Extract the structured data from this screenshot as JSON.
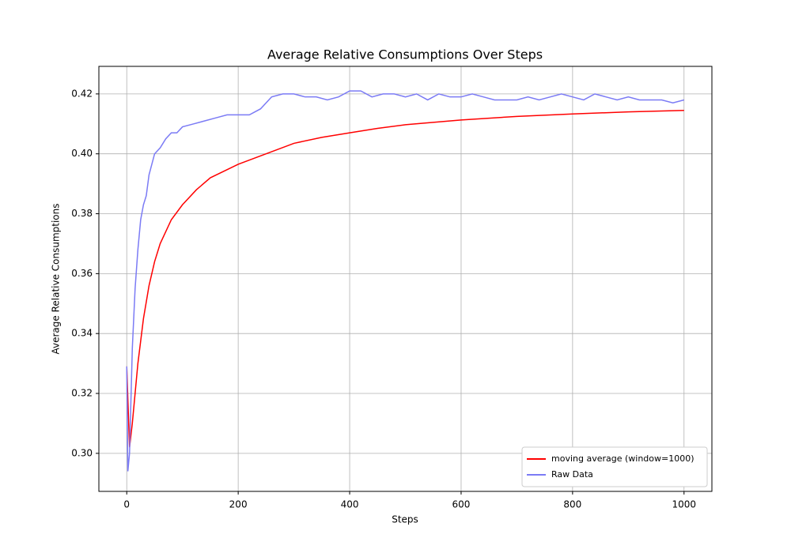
{
  "chart_data": {
    "type": "line",
    "title": "Average Relative Consumptions Over Steps",
    "x_label": "Steps",
    "y_label": "Average Relative Consumptions",
    "xlim": [
      -50,
      1050
    ],
    "ylim": [
      0.2873,
      0.4292
    ],
    "xticks": [
      0,
      200,
      400,
      600,
      800,
      1000
    ],
    "yticks": [
      {
        "value": 0.3,
        "label": "0.30"
      },
      {
        "value": 0.32,
        "label": "0.32"
      },
      {
        "value": 0.34,
        "label": "0.34"
      },
      {
        "value": 0.36,
        "label": "0.36"
      },
      {
        "value": 0.38,
        "label": "0.38"
      },
      {
        "value": 0.4,
        "label": "0.40"
      },
      {
        "value": 0.42,
        "label": "0.42"
      }
    ],
    "grid": true,
    "legend": "lower right",
    "series": [
      {
        "name": "moving average (window=1000)",
        "color": "#ff0000",
        "x": [
          0,
          5,
          10,
          20,
          30,
          40,
          50,
          60,
          80,
          100,
          125,
          150,
          200,
          250,
          300,
          350,
          400,
          450,
          500,
          600,
          700,
          800,
          900,
          1000
        ],
        "values": [
          0.329,
          0.302,
          0.31,
          0.33,
          0.345,
          0.356,
          0.364,
          0.37,
          0.378,
          0.383,
          0.388,
          0.392,
          0.3965,
          0.4,
          0.4035,
          0.4055,
          0.407,
          0.4085,
          0.4097,
          0.4113,
          0.4125,
          0.4133,
          0.414,
          0.4145
        ]
      },
      {
        "name": "Raw Data",
        "color": "#7b7bf5",
        "x": [
          0,
          2,
          5,
          10,
          15,
          20,
          25,
          30,
          35,
          40,
          50,
          60,
          70,
          80,
          90,
          100,
          120,
          140,
          160,
          180,
          200,
          220,
          240,
          260,
          280,
          300,
          320,
          340,
          360,
          380,
          400,
          420,
          440,
          460,
          480,
          500,
          520,
          540,
          560,
          580,
          600,
          620,
          640,
          660,
          680,
          700,
          720,
          740,
          760,
          780,
          800,
          820,
          840,
          860,
          880,
          900,
          920,
          940,
          960,
          980,
          1000
        ],
        "values": [
          0.329,
          0.294,
          0.3,
          0.335,
          0.355,
          0.368,
          0.378,
          0.383,
          0.386,
          0.393,
          0.4,
          0.402,
          0.405,
          0.407,
          0.407,
          0.409,
          0.41,
          0.411,
          0.412,
          0.413,
          0.413,
          0.413,
          0.415,
          0.419,
          0.42,
          0.42,
          0.419,
          0.419,
          0.418,
          0.419,
          0.421,
          0.421,
          0.419,
          0.42,
          0.42,
          0.419,
          0.42,
          0.418,
          0.42,
          0.419,
          0.419,
          0.42,
          0.419,
          0.418,
          0.418,
          0.418,
          0.419,
          0.418,
          0.419,
          0.42,
          0.419,
          0.418,
          0.42,
          0.419,
          0.418,
          0.419,
          0.418,
          0.418,
          0.418,
          0.417,
          0.418
        ]
      }
    ]
  }
}
